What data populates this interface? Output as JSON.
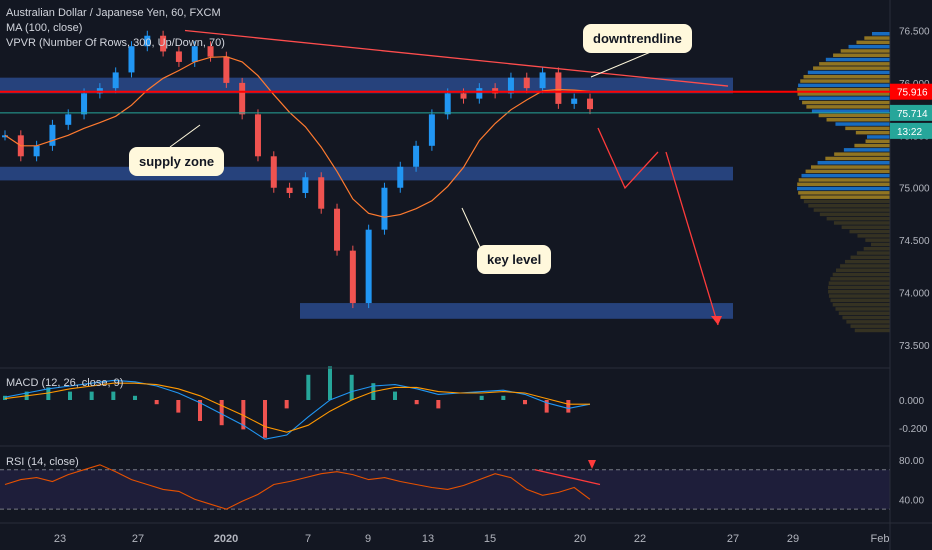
{
  "legend": {
    "title": "Australian Dollar / Japanese Yen, 60, FXCM",
    "ma": "MA (100, close)",
    "vpvr": "VPVR (Number Of Rows, 300, Up/Down, 70)",
    "macd": "MACD (12, 26, close, 9)",
    "rsi": "RSI (14, close)"
  },
  "annotations": {
    "downtrendline": "downtrendline",
    "supply_zone": "supply zone",
    "key_level": "key level"
  },
  "price_tags": {
    "red": "75.916",
    "teal": "75.714",
    "timer": "13:22"
  },
  "colors": {
    "background": "#131722",
    "up": "#2196f3",
    "down": "#ef5350",
    "ma": "#ff7a2f",
    "zone": "#2a4a8c",
    "annotation_bg": "#fff8dc",
    "rsi_line": "#e65100",
    "rsi_band": "#1e1e3a"
  },
  "chart_data": [
    {
      "type": "candlestick",
      "name": "Price",
      "ylim": [
        73.5,
        76.6
      ],
      "y_ticks": [
        "76.500",
        "76.000",
        "75.500",
        "75.000",
        "74.500",
        "74.000",
        "73.500"
      ],
      "x_ticks": [
        "23",
        "27",
        "2020",
        "7",
        "9",
        "13",
        "15",
        "20",
        "22",
        "27",
        "29",
        "Feb"
      ],
      "series": [
        {
          "name": "close",
          "values": [
            75.5,
            75.3,
            75.4,
            75.6,
            75.7,
            75.9,
            75.95,
            76.1,
            76.35,
            76.45,
            76.3,
            76.2,
            76.35,
            76.25,
            76.0,
            75.7,
            75.3,
            75.0,
            74.95,
            75.1,
            74.8,
            74.4,
            73.9,
            74.6,
            75.0,
            75.2,
            75.4,
            75.7,
            75.9,
            75.85,
            75.95,
            75.9,
            76.05,
            75.95,
            76.1,
            75.8,
            75.85,
            75.75
          ]
        }
      ],
      "zones": [
        [
          75.9,
          76.05
        ],
        [
          75.07,
          75.2
        ],
        [
          73.75,
          73.9
        ]
      ]
    },
    {
      "type": "line",
      "name": "MACD",
      "y_ticks": [
        "0.000",
        "-0.200"
      ],
      "series": [
        {
          "name": "MACD",
          "values": [
            0.02,
            0.05,
            0.08,
            0.1,
            0.12,
            0.14,
            0.13,
            0.1,
            0.05,
            -0.02,
            -0.1,
            -0.18,
            -0.28,
            -0.25,
            -0.12,
            0.0,
            0.06,
            0.1,
            0.11,
            0.08,
            0.04,
            0.05,
            0.06,
            0.07,
            0.04,
            -0.02,
            -0.06,
            -0.03
          ]
        },
        {
          "name": "Signal",
          "values": [
            0.01,
            0.03,
            0.05,
            0.08,
            0.1,
            0.12,
            0.12,
            0.11,
            0.08,
            0.03,
            -0.04,
            -0.11,
            -0.19,
            -0.23,
            -0.18,
            -0.08,
            0.0,
            0.06,
            0.09,
            0.09,
            0.06,
            0.05,
            0.05,
            0.06,
            0.05,
            0.01,
            -0.03,
            -0.03
          ]
        }
      ]
    },
    {
      "type": "line",
      "name": "RSI",
      "y_ticks": [
        "80.00",
        "40.00"
      ],
      "series": [
        {
          "name": "RSI",
          "values": [
            55,
            60,
            62,
            58,
            65,
            70,
            75,
            68,
            60,
            55,
            50,
            48,
            40,
            35,
            30,
            38,
            45,
            55,
            58,
            62,
            66,
            68,
            65,
            60,
            62,
            58,
            55,
            52,
            50,
            54,
            60,
            66,
            62,
            50,
            44,
            47,
            52,
            40
          ]
        }
      ]
    }
  ]
}
